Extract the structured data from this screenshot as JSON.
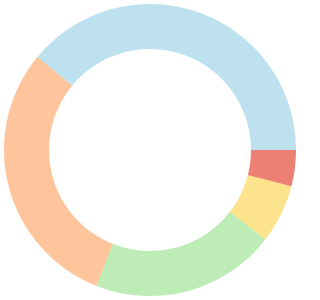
{
  "chart_data": {
    "type": "pie",
    "donut": true,
    "values": [
      4,
      6.5,
      20.5,
      30,
      39
    ],
    "colors": [
      "#ec8074",
      "#fde38c",
      "#bdecb6",
      "#fec49b",
      "#bde1ef"
    ]
  }
}
